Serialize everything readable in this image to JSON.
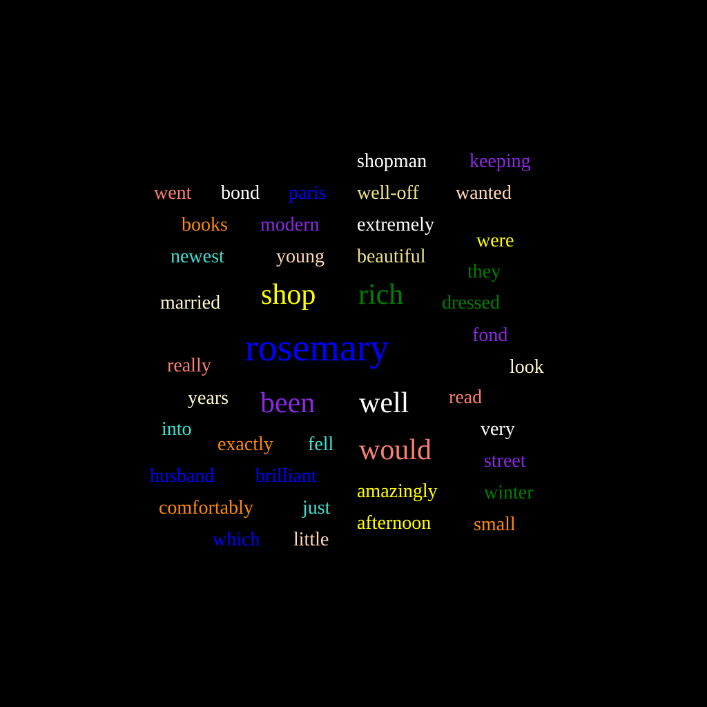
{
  "words": [
    {
      "text": "shopman",
      "color": "#FFFFFF"
    },
    {
      "text": "keeping",
      "color": "#8A2BE2"
    },
    {
      "text": "went",
      "color": "#FA8072"
    },
    {
      "text": "bond",
      "color": "#FFFFFF"
    },
    {
      "text": "paris",
      "color": "#0000FF"
    },
    {
      "text": "well-off",
      "color": "#F0E68C"
    },
    {
      "text": "wanted",
      "color": "#FFDAB9"
    },
    {
      "text": "books",
      "color": "#FF8C00"
    },
    {
      "text": "modern",
      "color": "#8A2BE2"
    },
    {
      "text": "extremely",
      "color": "#FFFFFF"
    },
    {
      "text": "were",
      "color": "#FFFF00"
    },
    {
      "text": "newest",
      "color": "#40E0D0"
    },
    {
      "text": "young",
      "color": "#FFDAB9"
    },
    {
      "text": "beautiful",
      "color": "#F0E68C"
    },
    {
      "text": "they",
      "color": "#008000"
    },
    {
      "text": "married",
      "color": "#FFFACD"
    },
    {
      "text": "shop",
      "color": "#FFFF00"
    },
    {
      "text": "rich",
      "color": "#008000"
    },
    {
      "text": "dressed",
      "color": "#008000"
    },
    {
      "text": "rosemary",
      "color": "#0000FF"
    },
    {
      "text": "fond",
      "color": "#8A2BE2"
    },
    {
      "text": "really",
      "color": "#FA8072"
    },
    {
      "text": "look",
      "color": "#FFFACD"
    },
    {
      "text": "years",
      "color": "#FFFACD"
    },
    {
      "text": "been",
      "color": "#8A2BE2"
    },
    {
      "text": "well",
      "color": "#FFFFFF"
    },
    {
      "text": "read",
      "color": "#FA8072"
    },
    {
      "text": "into",
      "color": "#40E0D0"
    },
    {
      "text": "exactly",
      "color": "#FF8C00"
    },
    {
      "text": "fell",
      "color": "#40E0D0"
    },
    {
      "text": "would",
      "color": "#FA8072"
    },
    {
      "text": "very",
      "color": "#FFFFFF"
    },
    {
      "text": "street",
      "color": "#8A2BE2"
    },
    {
      "text": "husband",
      "color": "#0000FF"
    },
    {
      "text": "brilliant",
      "color": "#0000FF"
    },
    {
      "text": "amazingly",
      "color": "#FFFF00"
    },
    {
      "text": "winter",
      "color": "#008000"
    },
    {
      "text": "comfortably",
      "color": "#FF8C00"
    },
    {
      "text": "just",
      "color": "#40E0D0"
    },
    {
      "text": "afternoon",
      "color": "#FFFF00"
    },
    {
      "text": "small",
      "color": "#FF8C00"
    },
    {
      "text": "which",
      "color": "#0000FF"
    },
    {
      "text": "little",
      "color": "#FFDAB9"
    }
  ]
}
